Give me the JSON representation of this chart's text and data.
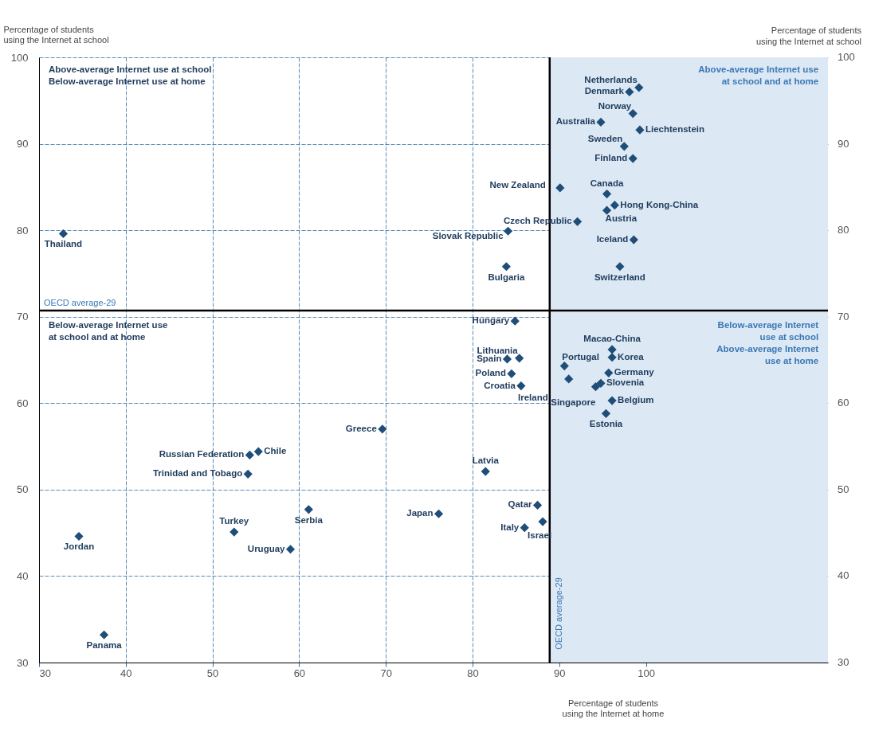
{
  "chart_data": {
    "type": "scatter",
    "xlabel": "Percentage of students using the Internet at home",
    "ylabel": "Percentage of students using the Internet at school",
    "y2label": "Percentage of students using the Internet at school",
    "xlim": [
      30,
      121
    ],
    "xticks": [
      30,
      40,
      50,
      60,
      70,
      80,
      90,
      100
    ],
    "ylim": [
      30,
      100
    ],
    "yticks": [
      30,
      40,
      50,
      60,
      70,
      80,
      90,
      100
    ],
    "y2lim": [
      30,
      100
    ],
    "y2ticks": [
      30,
      40,
      50,
      60,
      70,
      80,
      90,
      100
    ],
    "grid": true,
    "marker": "diamond",
    "x": [
      99.2,
      98.1,
      98.5,
      94.8,
      99.3,
      97.5,
      98.5,
      90.1,
      95.5,
      96.4,
      95.5,
      92.1,
      84.1,
      98.6,
      83.9,
      97.0,
      32.8,
      84.9,
      85.4,
      84.0,
      84.5,
      85.6,
      96.1,
      96.1,
      90.6,
      91.1,
      95.7,
      94.8,
      94.2,
      96.1,
      95.4,
      81.5,
      87.5,
      88.1,
      86.0,
      69.6,
      55.3,
      54.3,
      54.1,
      61.1,
      76.1,
      52.5,
      34.6,
      59.0,
      37.5
    ],
    "series": [
      {
        "color": "#1f4e79",
        "values": [
          96.5,
          96.0,
          93.5,
          92.5,
          91.6,
          89.7,
          88.3,
          84.9,
          84.2,
          82.9,
          82.3,
          81.0,
          79.9,
          78.9,
          75.8,
          75.8,
          79.6,
          69.5,
          65.2,
          65.1,
          63.4,
          62.0,
          66.2,
          65.3,
          64.3,
          62.8,
          63.5,
          62.3,
          61.9,
          60.3,
          58.8,
          52.1,
          48.2,
          46.3,
          45.6,
          57.0,
          54.4,
          54.0,
          51.8,
          47.7,
          47.2,
          45.1,
          44.6,
          43.1,
          33.2
        ]
      }
    ],
    "bands": [
      {
        "axis": "x",
        "from": 88.9,
        "to": 121,
        "color": "#dce8f4"
      }
    ],
    "ref_lines": [
      {
        "axis": "x",
        "value": 88.9,
        "label": "OECD average-29",
        "color": "#000000"
      },
      {
        "axis": "y",
        "value": 70.7,
        "label": "OECD average-29",
        "color": "#000000"
      }
    ],
    "annotations": [
      "Above-average Internet use at school\nBelow-average Internet use at home",
      "Above-average Internet use\nat school and at home",
      "Below-average Internet use\nat school and at home",
      "Below-average Internet\nuse at school\nAbove-average Internet\nuse at home",
      {
        "text": "Netherlands",
        "x": 99.2,
        "y": 96.5
      },
      {
        "text": "Denmark",
        "x": 98.1,
        "y": 96.0
      },
      {
        "text": "Norway",
        "x": 98.5,
        "y": 93.5
      },
      {
        "text": "Australia",
        "x": 94.8,
        "y": 92.5
      },
      {
        "text": "Liechtenstein",
        "x": 99.3,
        "y": 91.6
      },
      {
        "text": "Sweden",
        "x": 97.5,
        "y": 89.7
      },
      {
        "text": "Finland",
        "x": 98.5,
        "y": 88.3
      },
      {
        "text": "New Zealand",
        "x": 90.1,
        "y": 84.9
      },
      {
        "text": "Canada",
        "x": 95.5,
        "y": 84.2
      },
      {
        "text": "Hong Kong-China",
        "x": 96.4,
        "y": 82.9
      },
      {
        "text": "Austria",
        "x": 95.5,
        "y": 82.3
      },
      {
        "text": "Czech Republic",
        "x": 92.1,
        "y": 81.0
      },
      {
        "text": "Slovak Republic",
        "x": 84.1,
        "y": 79.9
      },
      {
        "text": "Iceland",
        "x": 98.6,
        "y": 78.9
      },
      {
        "text": "Bulgaria",
        "x": 83.9,
        "y": 75.8
      },
      {
        "text": "Switzerland",
        "x": 97.0,
        "y": 75.8
      },
      {
        "text": "Thailand",
        "x": 32.8,
        "y": 79.6
      },
      {
        "text": "Hungary",
        "x": 84.9,
        "y": 69.5
      },
      {
        "text": "Lithuania",
        "x": 85.4,
        "y": 65.2
      },
      {
        "text": "Spain",
        "x": 84.0,
        "y": 65.1
      },
      {
        "text": "Poland",
        "x": 84.5,
        "y": 63.4
      },
      {
        "text": "Croatia",
        "x": 85.6,
        "y": 62.0
      },
      {
        "text": "Macao-China",
        "x": 96.1,
        "y": 66.2
      },
      {
        "text": "Korea",
        "x": 96.1,
        "y": 65.3
      },
      {
        "text": "Portugal",
        "x": 90.6,
        "y": 64.3
      },
      {
        "text": "Ireland",
        "x": 91.1,
        "y": 62.8
      },
      {
        "text": "Germany",
        "x": 95.7,
        "y": 63.5
      },
      {
        "text": "Slovenia",
        "x": 94.8,
        "y": 62.3
      },
      {
        "text": "Singapore",
        "x": 94.2,
        "y": 61.9
      },
      {
        "text": "Belgium",
        "x": 96.1,
        "y": 60.3
      },
      {
        "text": "Estonia",
        "x": 95.4,
        "y": 58.8
      },
      {
        "text": "Latvia",
        "x": 81.5,
        "y": 52.1
      },
      {
        "text": "Qatar",
        "x": 87.5,
        "y": 48.2
      },
      {
        "text": "Israel",
        "x": 88.1,
        "y": 46.3
      },
      {
        "text": "Italy",
        "x": 86.0,
        "y": 45.6
      },
      {
        "text": "Greece",
        "x": 69.6,
        "y": 57.0
      },
      {
        "text": "Chile",
        "x": 55.3,
        "y": 54.4
      },
      {
        "text": "Russian Federation",
        "x": 54.3,
        "y": 54.0
      },
      {
        "text": "Trinidad and Tobago",
        "x": 54.1,
        "y": 51.8
      },
      {
        "text": "Serbia",
        "x": 61.1,
        "y": 47.7
      },
      {
        "text": "Japan",
        "x": 76.1,
        "y": 47.2
      },
      {
        "text": "Turkey",
        "x": 52.5,
        "y": 45.1
      },
      {
        "text": "Jordan",
        "x": 34.6,
        "y": 44.6
      },
      {
        "text": "Uruguay",
        "x": 59.0,
        "y": 43.1
      },
      {
        "text": "Panama",
        "x": 37.5,
        "y": 33.2
      }
    ]
  }
}
